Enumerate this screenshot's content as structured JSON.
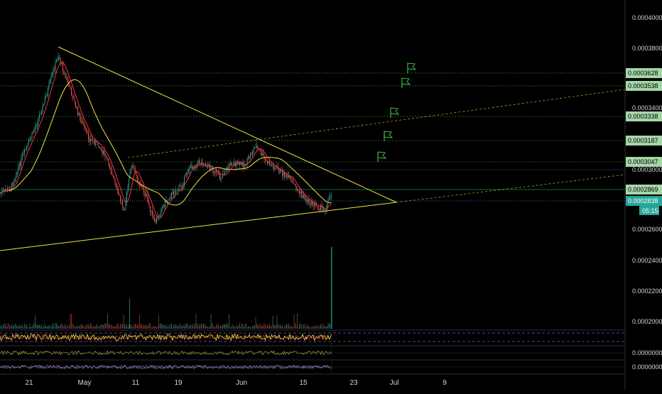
{
  "chart_data": {
    "type": "candlestick",
    "y_axis_ticks": [
      "0.0004000",
      "0.0003800",
      "0.0003400",
      "0.0003000",
      "0.0002600",
      "0.0002400",
      "0.0002200",
      "0.0002000"
    ],
    "y_range": [
      0.00019,
      0.000409
    ],
    "x_axis_labels": [
      "21",
      "May",
      "11",
      "19",
      "Jun",
      "15",
      "23",
      "Jul",
      "9"
    ],
    "target_levels": [
      {
        "label": "0.0003628",
        "value": 0.0003628
      },
      {
        "label": "0.0003538",
        "value": 0.0003538
      },
      {
        "label": "0.0003338",
        "value": 0.0003338
      },
      {
        "label": "0.0003187",
        "value": 0.0003187
      },
      {
        "label": "0.0003047",
        "value": 0.0003047
      }
    ],
    "current_levels": [
      {
        "label": "0.0002869",
        "value": 0.0002869,
        "color": "#1fae6e"
      },
      {
        "label": "0.0002838",
        "value": 0.0002838,
        "color": "#26c6da"
      }
    ],
    "countdown": "05:15",
    "oscillator_values": [
      "0.0000000",
      "0.0000000"
    ],
    "triangle": {
      "apex": {
        "date": "Jul",
        "price": 0.000278
      },
      "upper_start": {
        "date": "Apr 25",
        "price": 0.00038
      },
      "lower_start": {
        "date": "Apr 11",
        "price": 0.000251
      }
    },
    "colors": {
      "background": "#000000",
      "candle_up": "#26a69a",
      "candle_down": "#ef5350",
      "ma_fast": "#f23645",
      "ma_slow": "#f0e442",
      "trendline": "#f0e442",
      "target_bg": "#a5d6a7",
      "flag": "#3fbf3f"
    },
    "icons": [
      "target-flag-icon"
    ]
  }
}
